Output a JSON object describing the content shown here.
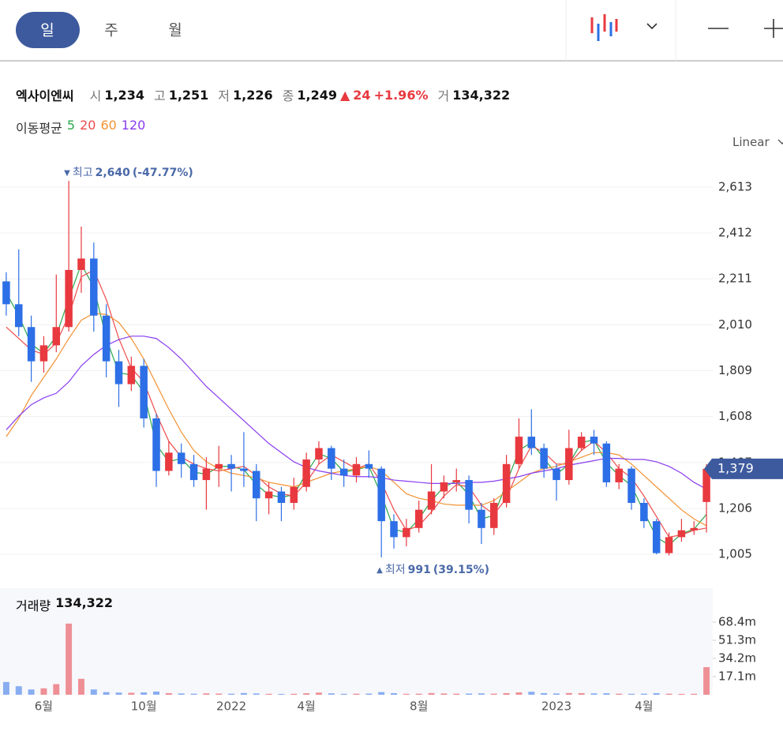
{
  "tabs": [
    "일",
    "주",
    "월"
  ],
  "header": {
    "name": "엑사이엔씨",
    "fields": [
      {
        "label": "시",
        "value": "1,234"
      },
      {
        "label": "고",
        "value": "1,251"
      },
      {
        "label": "저",
        "value": "1,226"
      },
      {
        "label": "종",
        "value": "1,249"
      }
    ],
    "change": {
      "arrow": "▲",
      "amount": "24",
      "percent": "+1.96%"
    },
    "volume": {
      "label": "거",
      "value": "134,322"
    }
  },
  "scale_mode": "Linear",
  "chart_data": {
    "type": "candlestick",
    "up_color": "#e8393f",
    "down_color": "#2d6fe6",
    "categories": [
      null,
      null,
      null,
      "6월",
      null,
      null,
      null,
      null,
      null,
      null,
      null,
      "10월",
      null,
      null,
      null,
      null,
      null,
      null,
      "2022",
      null,
      null,
      null,
      null,
      null,
      "4월",
      null,
      null,
      null,
      null,
      null,
      null,
      null,
      null,
      "8월",
      null,
      null,
      null,
      null,
      null,
      null,
      null,
      null,
      null,
      null,
      "2023",
      null,
      null,
      null,
      null,
      null,
      null,
      "4월",
      null,
      null,
      null,
      null,
      null
    ],
    "open": [
      2200,
      2100,
      2000,
      1850,
      1920,
      2000,
      2250,
      2300,
      2050,
      1850,
      1750,
      1830,
      1600,
      1370,
      1450,
      1400,
      1330,
      1380,
      1400,
      1380,
      1370,
      1250,
      1280,
      1230,
      1300,
      1420,
      1470,
      1380,
      1350,
      1400,
      1380,
      1150,
      1080,
      1120,
      1200,
      1280,
      1320,
      1330,
      1200,
      1120,
      1230,
      1400,
      1520,
      1470,
      1380,
      1330,
      1470,
      1520,
      1490,
      1320,
      1380,
      1230,
      1150,
      1010,
      1080,
      1110,
      1234
    ],
    "high": [
      2240,
      2340,
      2050,
      1960,
      2230,
      2640,
      2440,
      2370,
      2100,
      1900,
      1870,
      1860,
      1620,
      1500,
      1490,
      1440,
      1430,
      1480,
      1440,
      1540,
      1400,
      1320,
      1300,
      1340,
      1450,
      1500,
      1480,
      1420,
      1430,
      1460,
      1390,
      1180,
      1160,
      1240,
      1400,
      1350,
      1380,
      1350,
      1230,
      1250,
      1440,
      1600,
      1640,
      1490,
      1400,
      1550,
      1540,
      1550,
      1500,
      1400,
      1390,
      1250,
      1160,
      1100,
      1160,
      1150,
      1400
    ],
    "low": [
      2050,
      1960,
      1760,
      1800,
      1890,
      1980,
      2150,
      1980,
      1780,
      1650,
      1720,
      1560,
      1300,
      1350,
      1340,
      1300,
      1200,
      1300,
      1280,
      1300,
      1150,
      1180,
      1150,
      1200,
      1280,
      1400,
      1330,
      1300,
      1320,
      1340,
      991,
      1030,
      1040,
      1100,
      1180,
      1250,
      1280,
      1140,
      1050,
      1090,
      1210,
      1380,
      1440,
      1340,
      1240,
      1310,
      1460,
      1440,
      1300,
      1290,
      1200,
      1120,
      1005,
      1000,
      1060,
      1090,
      1100
    ],
    "close": [
      2100,
      2000,
      1850,
      1920,
      2000,
      2250,
      2300,
      2050,
      1850,
      1750,
      1830,
      1600,
      1370,
      1450,
      1400,
      1330,
      1380,
      1400,
      1380,
      1370,
      1250,
      1280,
      1230,
      1300,
      1420,
      1470,
      1380,
      1350,
      1400,
      1380,
      1150,
      1080,
      1120,
      1200,
      1280,
      1320,
      1330,
      1200,
      1120,
      1230,
      1400,
      1520,
      1470,
      1380,
      1330,
      1470,
      1520,
      1490,
      1320,
      1380,
      1230,
      1150,
      1010,
      1080,
      1110,
      1120,
      1379
    ],
    "close_label": "1,379",
    "ma_title": "이동평균",
    "series": [
      {
        "name": "5",
        "color": "#2aa84a",
        "values": [
          2150,
          2050,
          1925,
          1885,
          1960,
          2125,
          2275,
          2175,
          1950,
          1800,
          1790,
          1715,
          1485,
          1410,
          1425,
          1365,
          1355,
          1390,
          1390,
          1375,
          1310,
          1265,
          1255,
          1265,
          1360,
          1445,
          1425,
          1365,
          1375,
          1390,
          1265,
          1115,
          1100,
          1160,
          1240,
          1300,
          1325,
          1265,
          1160,
          1175,
          1315,
          1460,
          1495,
          1425,
          1355,
          1400,
          1495,
          1505,
          1405,
          1350,
          1305,
          1190,
          1080,
          1045,
          1095,
          1115,
          1180
        ]
      },
      {
        "name": "20",
        "color": "#ee4b4b",
        "values": [
          2000,
          1950,
          1900,
          1880,
          1930,
          2050,
          2220,
          2250,
          2120,
          1950,
          1820,
          1760,
          1620,
          1500,
          1430,
          1400,
          1380,
          1370,
          1380,
          1390,
          1350,
          1300,
          1270,
          1260,
          1320,
          1400,
          1440,
          1410,
          1380,
          1400,
          1320,
          1200,
          1110,
          1130,
          1190,
          1260,
          1310,
          1300,
          1220,
          1180,
          1250,
          1380,
          1480,
          1450,
          1400,
          1400,
          1460,
          1500,
          1450,
          1380,
          1340,
          1260,
          1170,
          1080,
          1090,
          1110,
          1120
        ]
      },
      {
        "name": "60",
        "color": "#f29233",
        "values": [
          1520,
          1600,
          1700,
          1780,
          1860,
          1950,
          2030,
          2060,
          2055,
          2020,
          1950,
          1860,
          1750,
          1640,
          1540,
          1460,
          1410,
          1380,
          1360,
          1350,
          1340,
          1320,
          1310,
          1300,
          1320,
          1340,
          1360,
          1370,
          1380,
          1390,
          1370,
          1320,
          1270,
          1250,
          1240,
          1225,
          1220,
          1220,
          1220,
          1240,
          1280,
          1320,
          1360,
          1380,
          1390,
          1410,
          1430,
          1450,
          1450,
          1440,
          1400,
          1350,
          1300,
          1250,
          1200,
          1160,
          1130
        ]
      },
      {
        "name": "120",
        "color": "#8a3cf0",
        "values": [
          1550,
          1610,
          1660,
          1690,
          1710,
          1760,
          1830,
          1880,
          1920,
          1945,
          1960,
          1960,
          1950,
          1910,
          1860,
          1800,
          1740,
          1690,
          1640,
          1590,
          1540,
          1490,
          1450,
          1410,
          1385,
          1370,
          1360,
          1350,
          1345,
          1345,
          1340,
          1330,
          1325,
          1320,
          1315,
          1315,
          1315,
          1320,
          1320,
          1325,
          1335,
          1345,
          1360,
          1370,
          1380,
          1395,
          1405,
          1415,
          1425,
          1425,
          1420,
          1420,
          1410,
          1390,
          1360,
          1320,
          1290
        ]
      }
    ],
    "ylim": [
      867,
      2758
    ],
    "yticks": [
      {
        "value": 1005,
        "label": "1,005"
      },
      {
        "value": 1206,
        "label": "1,206"
      },
      {
        "value": 1407,
        "label": "1,407"
      },
      {
        "value": 1608,
        "label": "1,608"
      },
      {
        "value": 1809,
        "label": "1,809"
      },
      {
        "value": 2010,
        "label": "2,010"
      },
      {
        "value": 2211,
        "label": "2,211"
      },
      {
        "value": 2412,
        "label": "2,412"
      },
      {
        "value": 2613,
        "label": "2,613"
      }
    ],
    "grid": true,
    "annotations": [
      {
        "marker": "▼",
        "text": "최고",
        "value_label": "2,640",
        "pct": "(-47.77%)"
      },
      {
        "marker": "▲",
        "text": "최저",
        "value_label": "991",
        "pct": "(39.15%)"
      }
    ],
    "volume": {
      "name": "거래량",
      "value_label": "134,322",
      "values": [
        12000000,
        8000000,
        5000000,
        6000000,
        10000000,
        67000000,
        15000000,
        5000000,
        2500000,
        2000000,
        1800000,
        2200000,
        3000000,
        1500000,
        1200000,
        1000000,
        1300000,
        1100000,
        1000000,
        1600000,
        1200000,
        900000,
        800000,
        900000,
        1400000,
        2000000,
        1300000,
        900000,
        1000000,
        1100000,
        2500000,
        1500000,
        900000,
        1000000,
        1600000,
        1200000,
        1000000,
        1100000,
        1300000,
        1000000,
        1500000,
        2200000,
        2800000,
        1500000,
        1200000,
        1600000,
        1500000,
        1300000,
        1400000,
        1000000,
        900000,
        1000000,
        1500000,
        1000000,
        800000,
        900000,
        26000000
      ],
      "ylim": [
        0,
        100400000
      ],
      "yticks": [
        {
          "value": 17100000,
          "label": "17.1m"
        },
        {
          "value": 34200000,
          "label": "34.2m"
        },
        {
          "value": 51300000,
          "label": "51.3m"
        },
        {
          "value": 68400000,
          "label": "68.4m"
        }
      ]
    }
  }
}
